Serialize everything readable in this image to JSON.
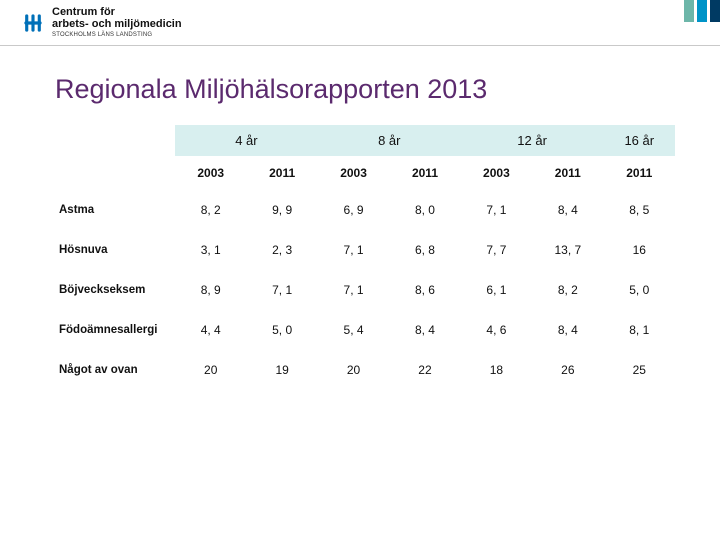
{
  "logo": {
    "line1": "Centrum för",
    "line2": "arbets- och miljömedicin",
    "subline": "STOCKHOLMS LÄNS LANDSTING",
    "mark_color": "#0070b8"
  },
  "corner": {
    "c1": "#6db6a9",
    "c2": "#0094c8",
    "c3": "#003a63"
  },
  "title": "Regionala Miljöhälsorapporten 2013",
  "table": {
    "header_bg": "#d8efef",
    "ages": [
      "4 år",
      "8 år",
      "12 år",
      "16 år"
    ],
    "age_spans": [
      2,
      2,
      2,
      1
    ],
    "subheaders": [
      "2003",
      "2011",
      "2003",
      "2011",
      "2003",
      "2011",
      "2011"
    ],
    "rows": [
      {
        "label": "Astma",
        "cells": [
          "8, 2",
          "9, 9",
          "6, 9",
          "8, 0",
          "7, 1",
          "8, 4",
          "8, 5"
        ]
      },
      {
        "label": "Hösnuva",
        "cells": [
          "3, 1",
          "2, 3",
          "7, 1",
          "6, 8",
          "7, 7",
          "13, 7",
          "16"
        ]
      },
      {
        "label": "Böjveckseksem",
        "cells": [
          "8, 9",
          "7, 1",
          "7, 1",
          "8, 6",
          "6, 1",
          "8, 2",
          "5, 0"
        ]
      },
      {
        "label": "Födoämnesallergi",
        "cells": [
          "4, 4",
          "5, 0",
          "5, 4",
          "8, 4",
          "4, 6",
          "8, 4",
          "8, 1"
        ]
      },
      {
        "label": "Något av ovan",
        "cells": [
          "20",
          "19",
          "20",
          "22",
          "18",
          "26",
          "25"
        ]
      }
    ]
  }
}
